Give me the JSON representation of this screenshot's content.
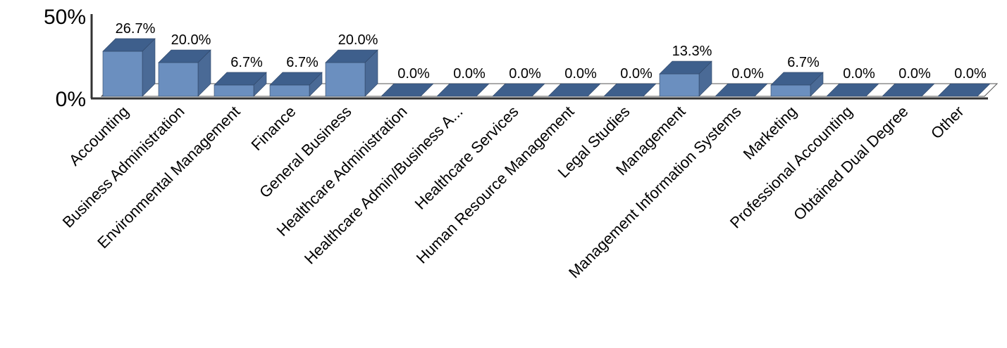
{
  "chart_data": {
    "type": "bar",
    "title": "",
    "xlabel": "",
    "ylabel": "",
    "ylim": [
      0,
      50
    ],
    "yticks": [
      "0%",
      "50%"
    ],
    "categories": [
      "Accounting",
      "Business Administration",
      "Environmental Management",
      "Finance",
      "General Business",
      "Healthcare Administration",
      "Healthcare Admin/Business A...",
      "Healthcare Services",
      "Human Resource Management",
      "Legal Studies",
      "Management",
      "Management Information Systems",
      "Marketing",
      "Professional Accounting",
      "Obtained Dual Degree",
      "Other"
    ],
    "values": [
      26.7,
      20.0,
      6.7,
      6.7,
      20.0,
      0.0,
      0.0,
      0.0,
      0.0,
      0.0,
      13.3,
      0.0,
      6.7,
      0.0,
      0.0,
      0.0
    ],
    "labels": [
      "26.7%",
      "20.0%",
      "6.7%",
      "6.7%",
      "20.0%",
      "0.0%",
      "0.0%",
      "0.0%",
      "0.0%",
      "0.0%",
      "13.3%",
      "0.0%",
      "6.7%",
      "0.0%",
      "0.0%",
      "0.0%"
    ],
    "grid": false,
    "legend": "none",
    "colors": {
      "front": "#6b8fbf",
      "top": "#3e5f8c",
      "side": "#4a6a96",
      "floor": "#ffffff",
      "axis": "#333333"
    }
  }
}
